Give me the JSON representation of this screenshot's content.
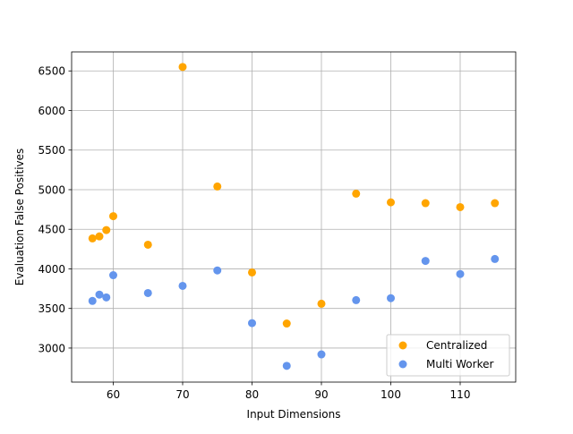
{
  "chart_data": {
    "type": "scatter",
    "title": "",
    "xlabel": "Input Dimensions",
    "ylabel": "Evaluation False Positives",
    "xlim": [
      54,
      118
    ],
    "ylim": [
      2570,
      6740
    ],
    "xticks": [
      60,
      70,
      80,
      90,
      100,
      110
    ],
    "yticks": [
      3000,
      3500,
      4000,
      4500,
      5000,
      5500,
      6000,
      6500
    ],
    "grid": true,
    "legend_position": "lower-right",
    "series": [
      {
        "name": "Centralized",
        "color": "#FFA500",
        "points": [
          {
            "x": 57,
            "y": 4385
          },
          {
            "x": 58,
            "y": 4410
          },
          {
            "x": 59,
            "y": 4490
          },
          {
            "x": 60,
            "y": 4665
          },
          {
            "x": 65,
            "y": 4305
          },
          {
            "x": 70,
            "y": 6550
          },
          {
            "x": 75,
            "y": 5040
          },
          {
            "x": 80,
            "y": 3955
          },
          {
            "x": 85,
            "y": 3310
          },
          {
            "x": 90,
            "y": 3560
          },
          {
            "x": 95,
            "y": 4950
          },
          {
            "x": 100,
            "y": 4840
          },
          {
            "x": 105,
            "y": 4830
          },
          {
            "x": 110,
            "y": 4780
          },
          {
            "x": 115,
            "y": 4830
          }
        ]
      },
      {
        "name": "Multi Worker",
        "color": "#6495ED",
        "points": [
          {
            "x": 57,
            "y": 3595
          },
          {
            "x": 58,
            "y": 3675
          },
          {
            "x": 59,
            "y": 3640
          },
          {
            "x": 60,
            "y": 3920
          },
          {
            "x": 65,
            "y": 3695
          },
          {
            "x": 70,
            "y": 3785
          },
          {
            "x": 75,
            "y": 3980
          },
          {
            "x": 80,
            "y": 3315
          },
          {
            "x": 85,
            "y": 2775
          },
          {
            "x": 90,
            "y": 2920
          },
          {
            "x": 95,
            "y": 3605
          },
          {
            "x": 100,
            "y": 3630
          },
          {
            "x": 105,
            "y": 4100
          },
          {
            "x": 110,
            "y": 3935
          },
          {
            "x": 115,
            "y": 4125
          }
        ]
      }
    ]
  }
}
